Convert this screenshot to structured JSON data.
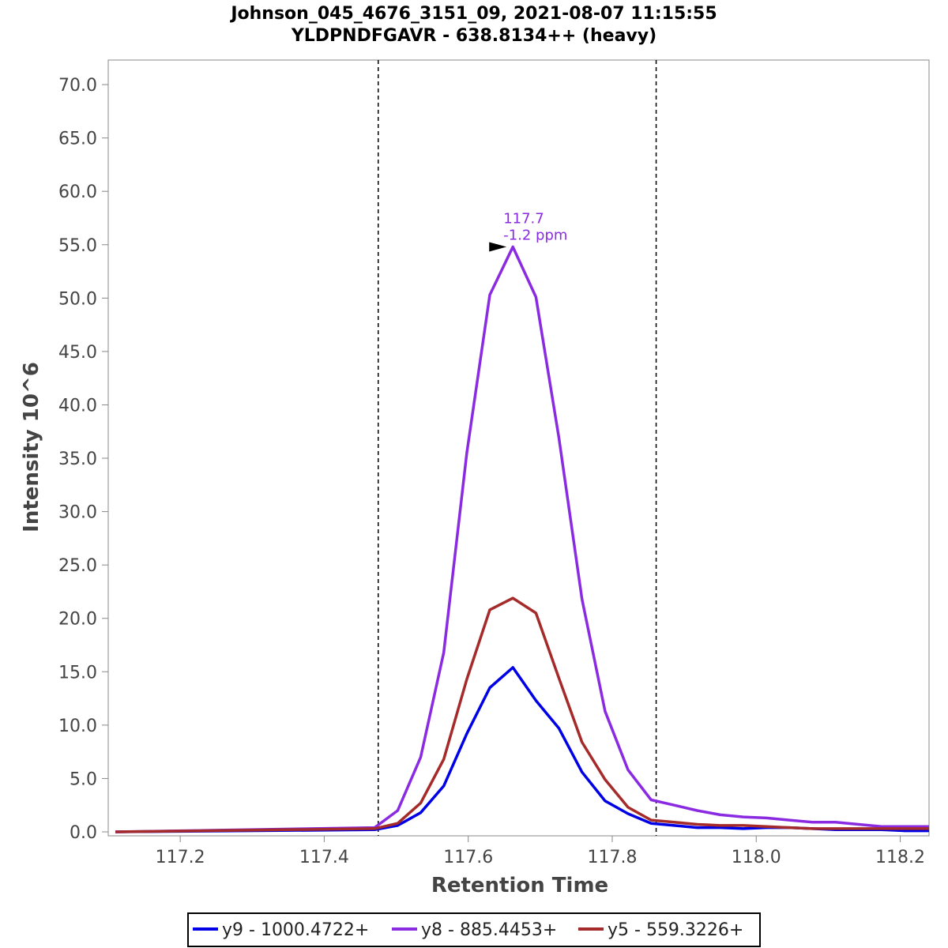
{
  "chart_data": {
    "type": "line",
    "title": "Johnson_045_4676_3151_09, 2021-08-07 11:15:55",
    "subtitle": "YLDPNDFGAVR - 638.8134++ (heavy)",
    "xlabel": "Retention Time",
    "ylabel": "Intensity 10^6",
    "xlim": [
      117.1,
      118.24
    ],
    "ylim": [
      0,
      72.3
    ],
    "x_ticks": [
      117.2,
      117.4,
      117.6,
      117.8,
      118.0,
      118.2
    ],
    "x_tick_labels": [
      "117.2",
      "117.4",
      "117.6",
      "117.8",
      "118.0",
      "118.2"
    ],
    "y_ticks": [
      0,
      5,
      10,
      15,
      20,
      25,
      30,
      35,
      40,
      45,
      50,
      55,
      60,
      65,
      70
    ],
    "y_tick_labels": [
      "0.0",
      "5.0",
      "10.0",
      "15.0",
      "20.0",
      "25.0",
      "30.0",
      "35.0",
      "40.0",
      "45.0",
      "50.0",
      "55.0",
      "60.0",
      "65.0",
      "70.0"
    ],
    "boundaries": [
      117.475,
      117.861
    ],
    "x": [
      117.11,
      117.47,
      117.502,
      117.534,
      117.566,
      117.598,
      117.63,
      117.662,
      117.694,
      117.726,
      117.758,
      117.79,
      117.822,
      117.854,
      117.886,
      117.918,
      117.95,
      117.982,
      118.014,
      118.046,
      118.078,
      118.11,
      118.142,
      118.174,
      118.206,
      118.24
    ],
    "series": [
      {
        "name": "y9 - 1000.4722+",
        "color": "#0000e6",
        "values": [
          0.0,
          0.2,
          0.6,
          1.8,
          4.3,
          9.2,
          13.5,
          15.4,
          12.3,
          9.7,
          5.6,
          2.9,
          1.7,
          0.8,
          0.6,
          0.4,
          0.4,
          0.3,
          0.4,
          0.4,
          0.3,
          0.2,
          0.2,
          0.2,
          0.1,
          0.1
        ]
      },
      {
        "name": "y8 - 885.4453+",
        "color": "#8a2be2",
        "values": [
          0.0,
          0.4,
          2.0,
          7.0,
          16.8,
          35.5,
          50.3,
          54.8,
          50.1,
          36.9,
          21.8,
          11.3,
          5.8,
          3.0,
          2.5,
          2.0,
          1.6,
          1.4,
          1.3,
          1.1,
          0.9,
          0.9,
          0.7,
          0.5,
          0.5,
          0.5
        ]
      },
      {
        "name": "y5 - 559.3226+",
        "color": "#a52a2a",
        "values": [
          0.0,
          0.3,
          0.8,
          2.7,
          6.8,
          14.3,
          20.8,
          21.9,
          20.5,
          14.4,
          8.4,
          4.9,
          2.3,
          1.1,
          0.9,
          0.7,
          0.6,
          0.6,
          0.5,
          0.4,
          0.3,
          0.3,
          0.3,
          0.3,
          0.3,
          0.3
        ]
      }
    ],
    "annotation": {
      "x": 117.662,
      "y": 54.8,
      "line1": "117.7",
      "line2": "-1.2 ppm",
      "color": "#8a2be2"
    },
    "legend": "bottom-center"
  }
}
